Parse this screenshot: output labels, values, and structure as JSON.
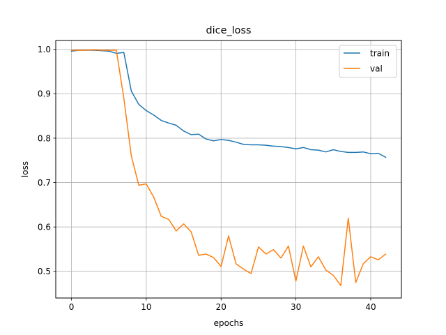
{
  "chart_data": {
    "type": "line",
    "title": "dice_loss",
    "xlabel": "epochs",
    "ylabel": "loss",
    "xlim": [
      -2.1,
      44.1
    ],
    "ylim": [
      0.44,
      1.02
    ],
    "xticks": [
      0,
      10,
      20,
      30,
      40
    ],
    "xtick_labels": [
      "0",
      "10",
      "20",
      "30",
      "40"
    ],
    "yticks": [
      0.5,
      0.6,
      0.7,
      0.8,
      0.9,
      1.0
    ],
    "ytick_labels": [
      "0.5",
      "0.6",
      "0.7",
      "0.8",
      "0.9",
      "1.0"
    ],
    "grid": true,
    "legend_position": "top-right",
    "x": [
      0,
      1,
      2,
      3,
      4,
      5,
      6,
      7,
      8,
      9,
      10,
      11,
      12,
      13,
      14,
      15,
      16,
      17,
      18,
      19,
      20,
      21,
      22,
      23,
      24,
      25,
      26,
      27,
      28,
      29,
      30,
      31,
      32,
      33,
      34,
      35,
      36,
      37,
      38,
      39,
      40,
      41,
      42
    ],
    "series": [
      {
        "name": "train",
        "color": "#1f77b4",
        "values": [
          0.996,
          0.998,
          0.998,
          0.998,
          0.997,
          0.996,
          0.991,
          0.993,
          0.906,
          0.876,
          0.862,
          0.852,
          0.84,
          0.834,
          0.829,
          0.816,
          0.808,
          0.809,
          0.798,
          0.794,
          0.797,
          0.795,
          0.791,
          0.786,
          0.785,
          0.785,
          0.784,
          0.782,
          0.781,
          0.779,
          0.776,
          0.779,
          0.774,
          0.773,
          0.769,
          0.774,
          0.77,
          0.768,
          0.768,
          0.769,
          0.765,
          0.766,
          0.757
        ]
      },
      {
        "name": "val",
        "color": "#ff7f0e",
        "values": [
          0.998,
          0.998,
          0.998,
          0.999,
          0.998,
          0.998,
          0.998,
          0.89,
          0.76,
          0.694,
          0.697,
          0.667,
          0.624,
          0.617,
          0.591,
          0.607,
          0.589,
          0.536,
          0.539,
          0.531,
          0.511,
          0.58,
          0.517,
          0.505,
          0.495,
          0.555,
          0.539,
          0.549,
          0.53,
          0.557,
          0.478,
          0.557,
          0.51,
          0.533,
          0.503,
          0.491,
          0.468,
          0.62,
          0.475,
          0.517,
          0.533,
          0.526,
          0.539
        ]
      }
    ]
  }
}
